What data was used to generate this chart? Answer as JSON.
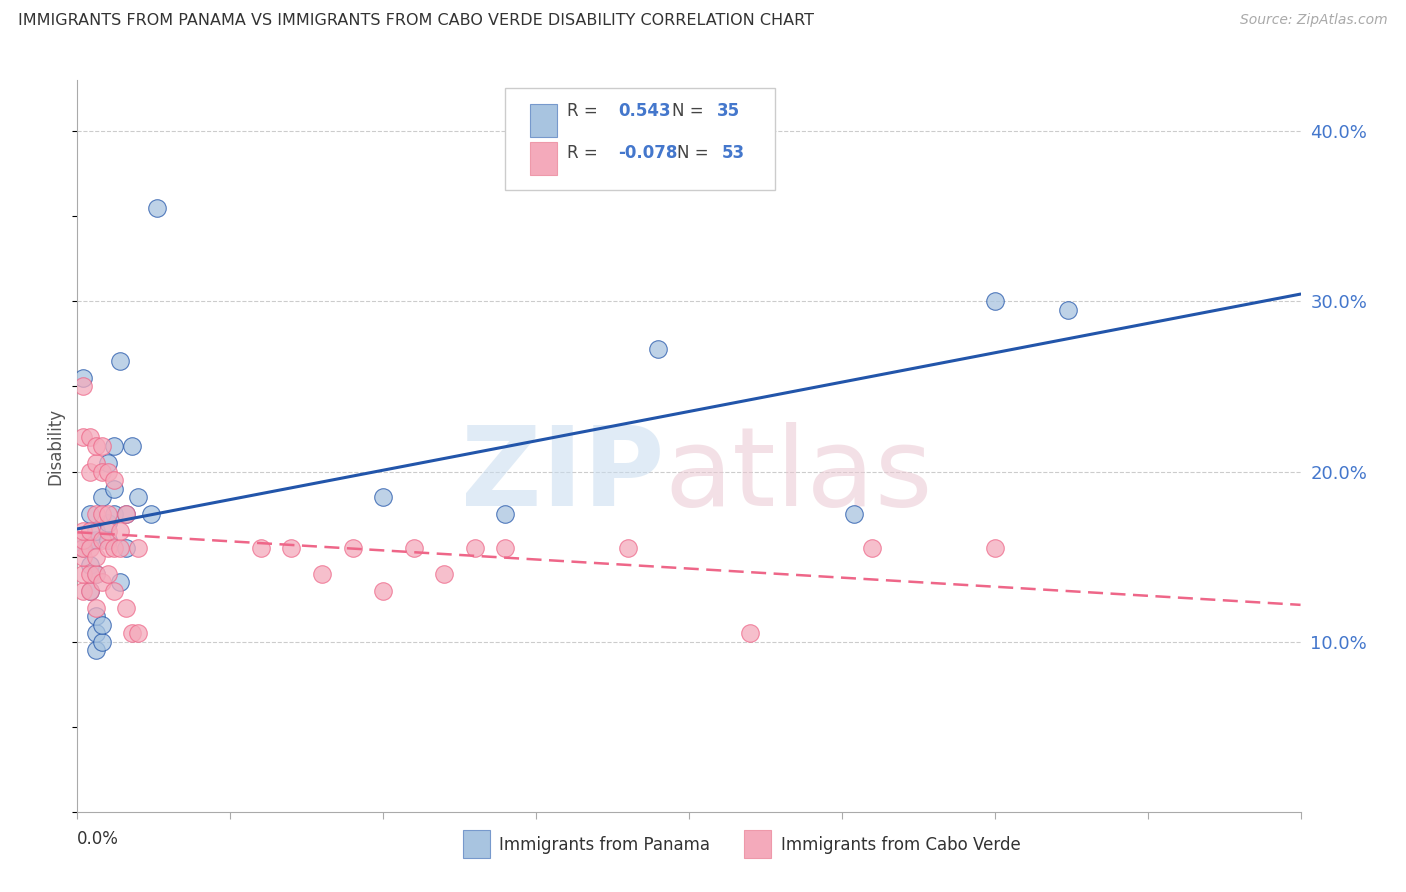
{
  "title": "IMMIGRANTS FROM PANAMA VS IMMIGRANTS FROM CABO VERDE DISABILITY CORRELATION CHART",
  "source": "Source: ZipAtlas.com",
  "ylabel": "Disability",
  "right_yticks": [
    "40.0%",
    "30.0%",
    "20.0%",
    "10.0%"
  ],
  "right_ytick_vals": [
    0.4,
    0.3,
    0.2,
    0.1
  ],
  "xlim": [
    0.0,
    0.2
  ],
  "ylim": [
    0.0,
    0.43
  ],
  "legend1_r": "0.543",
  "legend1_n": "35",
  "legend2_r": "-0.078",
  "legend2_n": "53",
  "color_panama": "#A8C4E0",
  "color_caboverde": "#F4AABB",
  "trend_color_panama": "#2255AA",
  "trend_color_caboverde": "#EE6688",
  "panama_x": [
    0.001,
    0.001,
    0.002,
    0.002,
    0.002,
    0.002,
    0.003,
    0.003,
    0.003,
    0.003,
    0.003,
    0.003,
    0.004,
    0.004,
    0.004,
    0.005,
    0.005,
    0.005,
    0.006,
    0.006,
    0.006,
    0.007,
    0.007,
    0.008,
    0.008,
    0.009,
    0.01,
    0.012,
    0.013,
    0.05,
    0.07,
    0.095,
    0.127,
    0.15,
    0.162
  ],
  "panama_y": [
    0.255,
    0.155,
    0.13,
    0.145,
    0.16,
    0.175,
    0.095,
    0.105,
    0.115,
    0.14,
    0.16,
    0.165,
    0.1,
    0.11,
    0.185,
    0.16,
    0.17,
    0.205,
    0.175,
    0.19,
    0.215,
    0.135,
    0.265,
    0.155,
    0.175,
    0.215,
    0.185,
    0.175,
    0.355,
    0.185,
    0.175,
    0.272,
    0.175,
    0.3,
    0.295
  ],
  "caboverde_x": [
    0.001,
    0.001,
    0.001,
    0.001,
    0.001,
    0.001,
    0.001,
    0.001,
    0.002,
    0.002,
    0.002,
    0.002,
    0.002,
    0.002,
    0.003,
    0.003,
    0.003,
    0.003,
    0.003,
    0.003,
    0.004,
    0.004,
    0.004,
    0.004,
    0.004,
    0.005,
    0.005,
    0.005,
    0.005,
    0.005,
    0.006,
    0.006,
    0.006,
    0.007,
    0.007,
    0.008,
    0.008,
    0.009,
    0.01,
    0.01,
    0.03,
    0.035,
    0.04,
    0.045,
    0.05,
    0.055,
    0.06,
    0.065,
    0.07,
    0.09,
    0.11,
    0.13,
    0.15
  ],
  "caboverde_y": [
    0.13,
    0.14,
    0.15,
    0.155,
    0.16,
    0.165,
    0.22,
    0.25,
    0.13,
    0.14,
    0.155,
    0.165,
    0.2,
    0.22,
    0.12,
    0.14,
    0.15,
    0.175,
    0.205,
    0.215,
    0.135,
    0.16,
    0.175,
    0.2,
    0.215,
    0.14,
    0.155,
    0.165,
    0.175,
    0.2,
    0.13,
    0.155,
    0.195,
    0.155,
    0.165,
    0.12,
    0.175,
    0.105,
    0.105,
    0.155,
    0.155,
    0.155,
    0.14,
    0.155,
    0.13,
    0.155,
    0.14,
    0.155,
    0.155,
    0.155,
    0.105,
    0.155,
    0.155
  ]
}
